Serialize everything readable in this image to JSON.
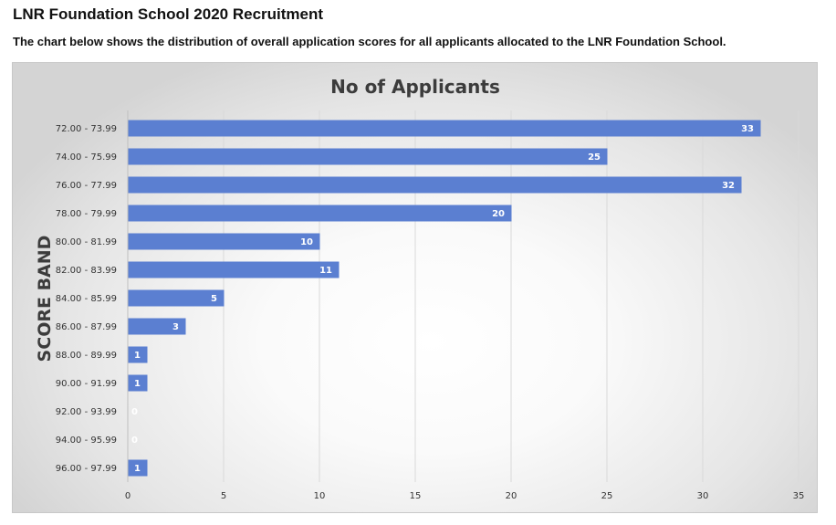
{
  "page": {
    "title": "LNR Foundation School 2020 Recruitment",
    "subtitle": "The chart below shows the distribution of overall application scores for all applicants allocated to the LNR Foundation School."
  },
  "colors": {
    "bar": "#5b7fd1",
    "label_on_bar": "#ffffff"
  },
  "chart_data": {
    "type": "bar",
    "orientation": "horizontal",
    "title": "No of Applicants",
    "xlabel": "",
    "ylabel": "SCORE BAND",
    "categories": [
      "72.00 - 73.99",
      "74.00 - 75.99",
      "76.00 - 77.99",
      "78.00 - 79.99",
      "80.00 - 81.99",
      "82.00 - 83.99",
      "84.00 - 85.99",
      "86.00 - 87.99",
      "88.00 - 89.99",
      "90.00 - 91.99",
      "92.00 - 93.99",
      "94.00 - 95.99",
      "96.00 - 97.99"
    ],
    "values": [
      33,
      25,
      32,
      20,
      10,
      11,
      5,
      3,
      1,
      1,
      0,
      0,
      1
    ],
    "xlim": [
      0,
      35
    ],
    "xticks": [
      0,
      5,
      10,
      15,
      20,
      25,
      30,
      35
    ],
    "grid": true,
    "legend": "none"
  }
}
